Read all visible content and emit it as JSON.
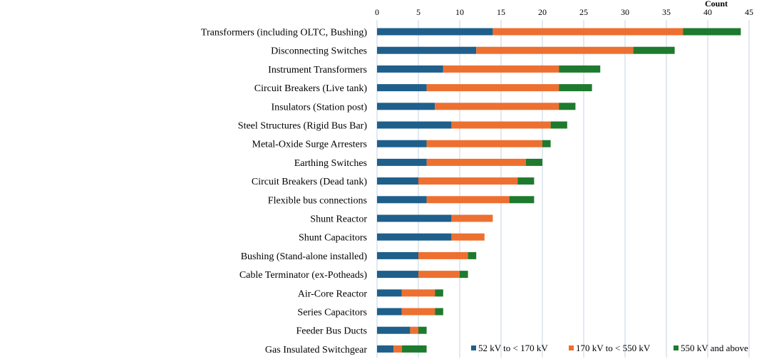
{
  "chart_data": {
    "type": "bar",
    "orientation": "horizontal",
    "stacked": true,
    "title": "",
    "xlabel": "Count",
    "ylabel": "",
    "xlim": [
      0,
      45
    ],
    "xticks": [
      0,
      5,
      10,
      15,
      20,
      25,
      30,
      35,
      40,
      45
    ],
    "grid": true,
    "legend_position": "bottom-right",
    "categories": [
      "Transformers (including OLTC, Bushing)",
      "Disconnecting Switches",
      "Instrument Transformers",
      "Circuit Breakers (Live tank)",
      "Insulators (Station post)",
      "Steel Structures (Rigid Bus Bar)",
      "Metal-Oxide Surge Arresters",
      "Earthing Switches",
      "Circuit Breakers (Dead tank)",
      "Flexible bus connections",
      "Shunt Reactor",
      "Shunt Capacitors",
      "Bushing (Stand-alone installed)",
      "Cable Terminator (ex-Potheads)",
      "Air-Core Reactor",
      "Series Capacitors",
      "Feeder Bus Ducts",
      "Gas Insulated Switchgear"
    ],
    "series": [
      {
        "name": "52 kV to < 170 kV",
        "color": "#1f5f8b",
        "values": [
          14,
          12,
          8,
          6,
          7,
          9,
          6,
          6,
          5,
          6,
          9,
          9,
          5,
          5,
          3,
          3,
          4,
          2
        ]
      },
      {
        "name": "170 kV to < 550 kV",
        "color": "#ed7031",
        "values": [
          23,
          19,
          14,
          16,
          15,
          12,
          14,
          12,
          12,
          10,
          5,
          4,
          6,
          5,
          4,
          4,
          1,
          1
        ]
      },
      {
        "name": "550 kV and above",
        "color": "#1e7a2e",
        "values": [
          7,
          5,
          5,
          4,
          2,
          2,
          1,
          2,
          2,
          3,
          0,
          0,
          1,
          1,
          1,
          1,
          1,
          3
        ]
      }
    ]
  }
}
